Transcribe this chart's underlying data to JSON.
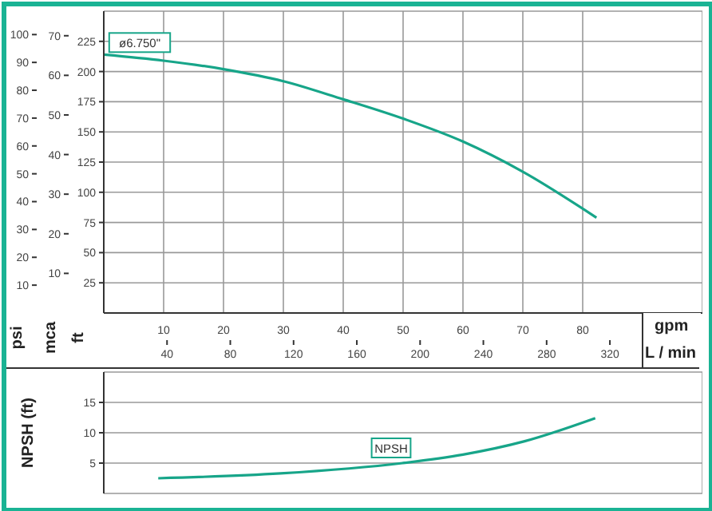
{
  "chart_data": [
    {
      "type": "line",
      "xlabel": "gpm",
      "x2label": "L / min",
      "ylabel": "ft",
      "y2label": "psi",
      "y3label": "mca",
      "xlim": [
        0,
        100
      ],
      "xticks": [
        10,
        20,
        30,
        40,
        50,
        60,
        70,
        80
      ],
      "x2lim": [
        0,
        378.5
      ],
      "x2ticks": [
        40,
        80,
        120,
        160,
        200,
        240,
        280,
        320
      ],
      "ylim": [
        0,
        250
      ],
      "yticks": [
        25,
        50,
        75,
        100,
        125,
        150,
        175,
        200,
        225
      ],
      "y2lim": [
        0,
        108.4
      ],
      "y2ticks": [
        10,
        20,
        30,
        40,
        50,
        60,
        70,
        80,
        90,
        100
      ],
      "y3lim": [
        0,
        76.2
      ],
      "y3ticks": [
        10,
        20,
        30,
        40,
        50,
        60,
        70
      ],
      "grid": true,
      "marker": "none",
      "line_style": "solid",
      "series": [
        {
          "color": "#17a589",
          "x": [
            0,
            10,
            20,
            30,
            40,
            50,
            60,
            70,
            82.3
          ],
          "values": [
            214,
            209,
            202,
            192,
            177,
            161,
            142,
            117,
            79
          ]
        }
      ],
      "annotations": [
        {
          "text": "ø6.750\"",
          "x": 6,
          "y": 224
        }
      ]
    },
    {
      "type": "line",
      "ylabel": "NPSH (ft)",
      "xlim": [
        0,
        100
      ],
      "xticks": [
        10,
        20,
        30,
        40,
        50,
        60,
        70,
        80
      ],
      "ylim": [
        0,
        20
      ],
      "yticks": [
        5,
        10,
        15
      ],
      "grid": true,
      "tick_labels": "y",
      "marker": "none",
      "line_style": "solid",
      "series": [
        {
          "color": "#17a589",
          "x": [
            9.1,
            29.5,
            49.9,
            60,
            70.3,
            82.1
          ],
          "values": [
            2.5,
            3.3,
            5.0,
            6.4,
            8.6,
            12.4
          ]
        }
      ],
      "annotations": [
        {
          "text": "NPSH",
          "x": 48,
          "y": 7.5
        }
      ]
    }
  ]
}
